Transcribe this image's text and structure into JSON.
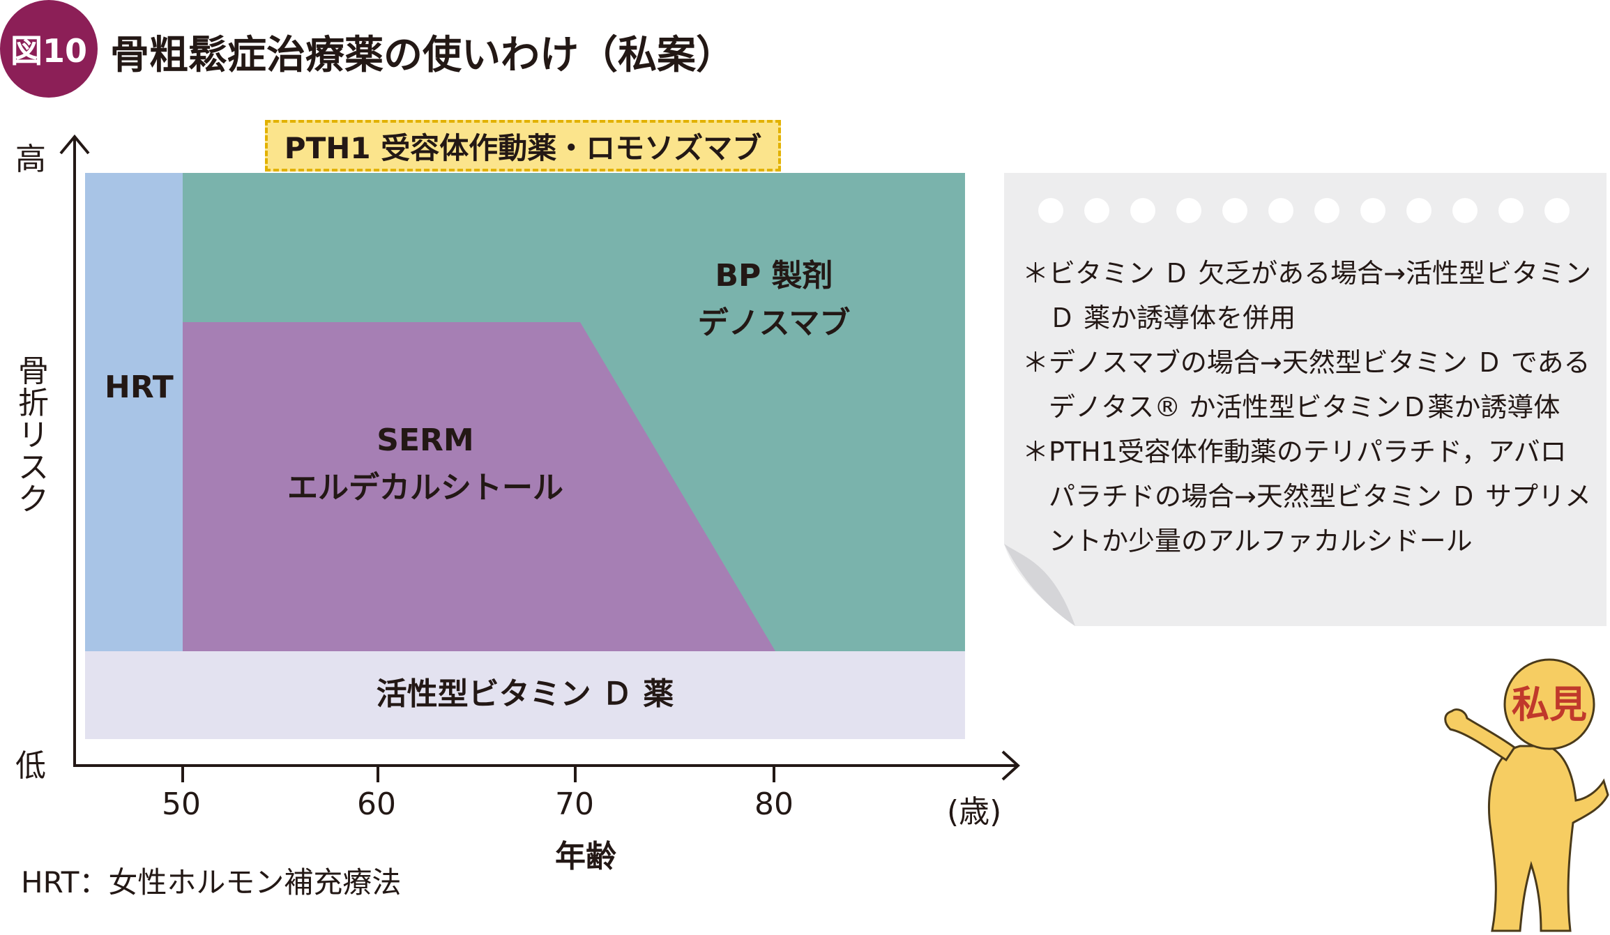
{
  "figure": {
    "badge": "図10",
    "title": "骨粗鬆症治療薬の使いわけ（私案）"
  },
  "chart_data": {
    "type": "area",
    "yaxis": {
      "label_chars": [
        "骨",
        "折",
        "リ",
        "ス",
        "ク"
      ],
      "high_label": "高",
      "low_label": "低"
    },
    "xaxis": {
      "label": "年齢",
      "unit": "(歳)",
      "ticks": [
        "50",
        "60",
        "70",
        "80"
      ],
      "range": [
        44.5,
        92
      ]
    },
    "banner": "PTH1 受容体作動薬・ロモソズマブ",
    "regions": [
      {
        "name": "HRT",
        "label_lines": [
          "HRT"
        ],
        "color": "#a8c4e6",
        "age_from": 45,
        "age_to": 50
      },
      {
        "name": "BP製剤/デノスマブ",
        "label_lines": [
          "BP 製剤",
          "デノスマブ"
        ],
        "color": "#7ab3ac",
        "age_from": 50,
        "age_to": 89.5
      },
      {
        "name": "SERM/エルデカルシトール",
        "label_lines": [
          "SERM",
          "エルデカルシトール"
        ],
        "color": "#a67fb4",
        "age_from": 50,
        "age_to": 80,
        "taper_from_age": 70
      },
      {
        "name": "活性型ビタミンD薬",
        "label_lines": [
          "活性型ビタミン Ｄ 薬"
        ],
        "color": "#e3e2f0",
        "age_from": 45,
        "age_to": 89.5
      }
    ]
  },
  "footnote": "HRT：女性ホルモン補充療法",
  "note": {
    "lines": [
      "＊ビタミン Ｄ 欠乏がある場合→活性型ビタミン",
      "　Ｄ 薬か誘導体を併用",
      "＊デノスマブの場合→天然型ビタミン Ｄ である",
      "　デノタス® か活性型ビタミンＤ薬か誘導体",
      "＊PTH1受容体作動薬のテリパラチド，アバロ",
      "　パラチドの場合→天然型ビタミン Ｄ サプリメ",
      "　ントか少量のアルファカルシドール"
    ],
    "panel_color": "#ededee"
  },
  "character": {
    "badge_text": "私見",
    "body_color": "#f6cd62",
    "badge_color": "#c0392b"
  }
}
